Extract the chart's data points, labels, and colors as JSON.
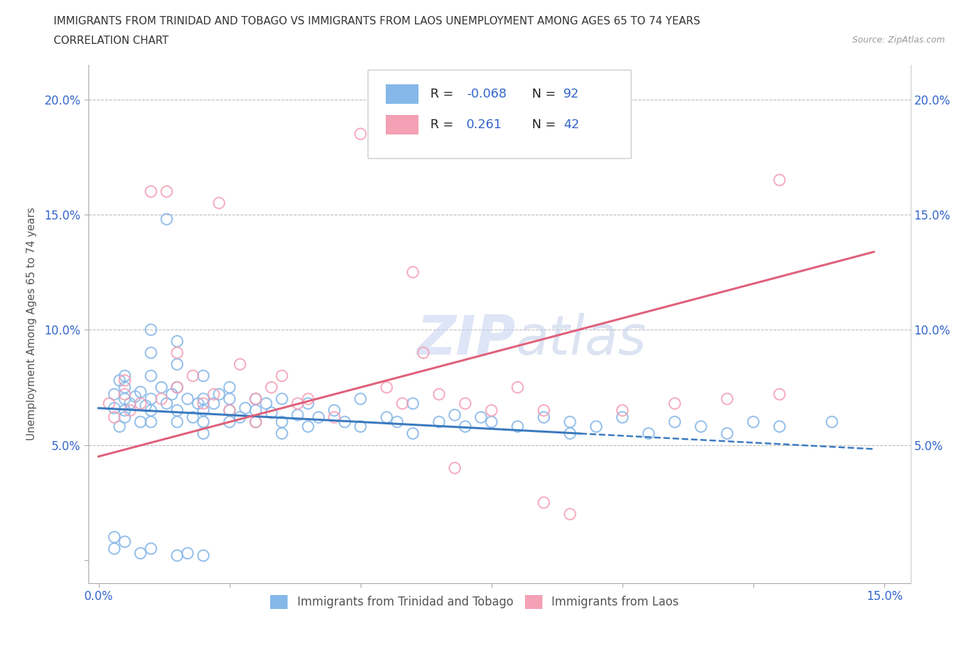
{
  "title_line1": "IMMIGRANTS FROM TRINIDAD AND TOBAGO VS IMMIGRANTS FROM LAOS UNEMPLOYMENT AMONG AGES 65 TO 74 YEARS",
  "title_line2": "CORRELATION CHART",
  "source": "Source: ZipAtlas.com",
  "ylabel": "Unemployment Among Ages 65 to 74 years",
  "xlim": [
    -0.002,
    0.155
  ],
  "ylim": [
    -0.01,
    0.215
  ],
  "color_tt": "#85b7e8",
  "color_laos": "#f4a0b5",
  "line_color_tt": "#3a7abf",
  "line_color_laos": "#e0607a",
  "R_tt": -0.068,
  "N_tt": 92,
  "R_laos": 0.261,
  "N_laos": 42
}
